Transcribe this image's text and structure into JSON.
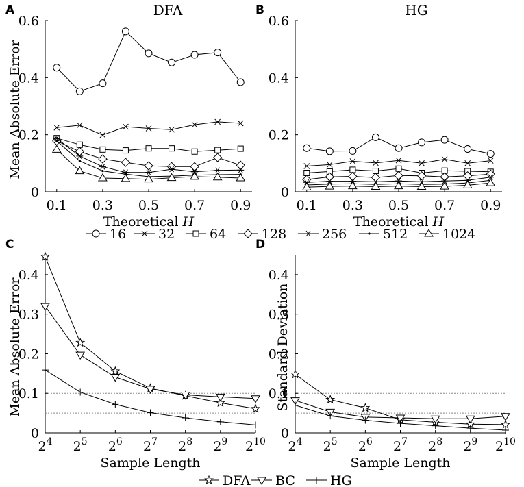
{
  "panels": [
    {
      "id": "A",
      "title": "DFA"
    },
    {
      "id": "B",
      "title": "HG"
    },
    {
      "id": "C",
      "title": ""
    },
    {
      "id": "D",
      "title": ""
    }
  ],
  "legends": [
    {
      "entries": [
        "16",
        "32",
        "64",
        "128",
        "256",
        "512",
        "1024"
      ]
    },
    {
      "entries": [
        "DFA",
        "BC",
        "HG"
      ]
    }
  ],
  "chart_data": [
    {
      "panel": "A",
      "type": "line",
      "title": "DFA",
      "xlabel": "Theoretical H",
      "ylabel": "Mean Absolute Error",
      "x": [
        0.1,
        0.2,
        0.3,
        0.4,
        0.5,
        0.6,
        0.7,
        0.8,
        0.9
      ],
      "xticks": [
        "0.1",
        "0.3",
        "0.5",
        "0.7",
        "0.9"
      ],
      "xlim": [
        0.05,
        0.95
      ],
      "ylim": [
        0,
        0.6
      ],
      "yticks": [
        "0",
        "0.2",
        "0.4",
        "0.6"
      ],
      "series": [
        {
          "name": "16",
          "marker": "circle",
          "values": [
            0.435,
            0.352,
            0.38,
            0.562,
            0.485,
            0.453,
            0.48,
            0.488,
            0.384
          ]
        },
        {
          "name": "32",
          "marker": "x",
          "values": [
            0.225,
            0.233,
            0.199,
            0.228,
            0.222,
            0.218,
            0.235,
            0.245,
            0.24
          ]
        },
        {
          "name": "64",
          "marker": "square",
          "values": [
            0.188,
            0.165,
            0.148,
            0.145,
            0.152,
            0.152,
            0.141,
            0.146,
            0.151
          ]
        },
        {
          "name": "128",
          "marker": "diamond",
          "values": [
            0.178,
            0.141,
            0.115,
            0.103,
            0.091,
            0.088,
            0.088,
            0.12,
            0.093
          ]
        },
        {
          "name": "256",
          "marker": "asterisk",
          "values": [
            0.187,
            0.125,
            0.088,
            0.068,
            0.068,
            0.079,
            0.07,
            0.075,
            0.076
          ]
        },
        {
          "name": "512",
          "marker": "dot",
          "values": [
            0.178,
            0.108,
            0.073,
            0.062,
            0.053,
            0.055,
            0.058,
            0.06,
            0.061
          ]
        },
        {
          "name": "1024",
          "marker": "triangle",
          "values": [
            0.148,
            0.073,
            0.048,
            0.046,
            0.044,
            0.049,
            0.053,
            0.051,
            0.048
          ]
        }
      ]
    },
    {
      "panel": "B",
      "type": "line",
      "title": "HG",
      "xlabel": "Theoretical H",
      "ylabel": "",
      "x": [
        0.1,
        0.2,
        0.3,
        0.4,
        0.5,
        0.6,
        0.7,
        0.8,
        0.9
      ],
      "xticks": [
        "0.1",
        "0.3",
        "0.5",
        "0.7",
        "0.9"
      ],
      "xlim": [
        0.05,
        0.95
      ],
      "ylim": [
        0,
        0.6
      ],
      "yticks": [
        "0",
        "0.2",
        "0.4",
        "0.6"
      ],
      "series": [
        {
          "name": "16",
          "marker": "circle",
          "values": [
            0.153,
            0.142,
            0.143,
            0.191,
            0.153,
            0.173,
            0.182,
            0.15,
            0.133
          ]
        },
        {
          "name": "32",
          "marker": "x",
          "values": [
            0.09,
            0.095,
            0.107,
            0.101,
            0.11,
            0.1,
            0.114,
            0.1,
            0.109
          ]
        },
        {
          "name": "64",
          "marker": "square",
          "values": [
            0.066,
            0.071,
            0.077,
            0.073,
            0.081,
            0.066,
            0.074,
            0.072,
            0.07
          ]
        },
        {
          "name": "128",
          "marker": "diamond",
          "values": [
            0.043,
            0.052,
            0.054,
            0.05,
            0.057,
            0.056,
            0.052,
            0.056,
            0.062
          ]
        },
        {
          "name": "256",
          "marker": "asterisk",
          "values": [
            0.033,
            0.037,
            0.037,
            0.035,
            0.038,
            0.035,
            0.038,
            0.04,
            0.051
          ]
        },
        {
          "name": "512",
          "marker": "dot",
          "values": [
            0.024,
            0.027,
            0.028,
            0.026,
            0.028,
            0.026,
            0.027,
            0.031,
            0.04
          ]
        },
        {
          "name": "1024",
          "marker": "triangle",
          "values": [
            0.016,
            0.019,
            0.02,
            0.018,
            0.02,
            0.018,
            0.019,
            0.023,
            0.031
          ]
        }
      ]
    },
    {
      "panel": "C",
      "type": "line",
      "title": "",
      "xlabel": "Sample Length",
      "ylabel": "Mean Absolute Error",
      "x": [
        4,
        5,
        6,
        7,
        8,
        9,
        10
      ],
      "xticks": [
        "2^4",
        "2^5",
        "2^6",
        "2^7",
        "2^8",
        "2^9",
        "2^10"
      ],
      "xlim": [
        4,
        10
      ],
      "ylim": [
        0,
        0.45
      ],
      "yticks": [
        "0",
        "0.1",
        "0.2",
        "0.3",
        "0.4"
      ],
      "reference_lines": [
        0.1,
        0.05
      ],
      "series": [
        {
          "name": "DFA",
          "marker": "star",
          "values": [
            0.445,
            0.228,
            0.156,
            0.113,
            0.094,
            0.076,
            0.061
          ]
        },
        {
          "name": "BC",
          "marker": "triangle-down",
          "values": [
            0.32,
            0.197,
            0.141,
            0.111,
            0.096,
            0.091,
            0.087
          ]
        },
        {
          "name": "HG",
          "marker": "plus",
          "values": [
            0.159,
            0.103,
            0.072,
            0.051,
            0.038,
            0.028,
            0.02
          ]
        }
      ]
    },
    {
      "panel": "D",
      "type": "line",
      "title": "",
      "xlabel": "Sample Length",
      "ylabel": "Standard Deviation",
      "x": [
        4,
        5,
        6,
        7,
        8,
        9,
        10
      ],
      "xticks": [
        "2^4",
        "2^5",
        "2^6",
        "2^7",
        "2^8",
        "2^9",
        "2^10"
      ],
      "xlim": [
        4,
        10
      ],
      "ylim": [
        0,
        0.45
      ],
      "yticks": [
        "0",
        "0.1",
        "0.2",
        "0.3",
        "0.4"
      ],
      "reference_lines": [
        0.1,
        0.05
      ],
      "series": [
        {
          "name": "DFA",
          "marker": "star",
          "values": [
            0.148,
            0.084,
            0.063,
            0.033,
            0.027,
            0.022,
            0.021
          ]
        },
        {
          "name": "BC",
          "marker": "triangle-down",
          "values": [
            0.082,
            0.053,
            0.04,
            0.038,
            0.036,
            0.036,
            0.042
          ]
        },
        {
          "name": "HG",
          "marker": "plus",
          "values": [
            0.07,
            0.043,
            0.032,
            0.024,
            0.018,
            0.012,
            0.007
          ]
        }
      ]
    }
  ]
}
